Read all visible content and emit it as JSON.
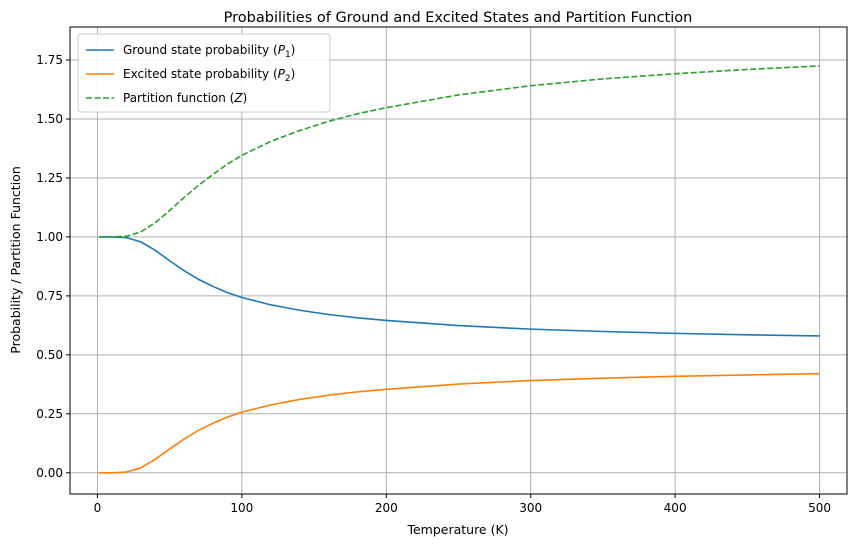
{
  "chart_data": {
    "type": "line",
    "title": "Probabilities of Ground and Excited States and Partition Function",
    "xlabel": "Temperature (K)",
    "ylabel": "Probability / Partition Function",
    "xlim": [
      -19,
      519
    ],
    "ylim": [
      -0.09,
      1.89
    ],
    "xticks": [
      0,
      100,
      200,
      300,
      400,
      500
    ],
    "xtick_labels": [
      "0",
      "100",
      "200",
      "300",
      "400",
      "500"
    ],
    "yticks": [
      0.0,
      0.25,
      0.5,
      0.75,
      1.0,
      1.25,
      1.5,
      1.75
    ],
    "ytick_labels": [
      "0.00",
      "0.25",
      "0.50",
      "0.75",
      "1.00",
      "1.25",
      "1.50",
      "1.75"
    ],
    "grid": true,
    "legend_position": "top-left",
    "x": [
      1,
      10,
      20,
      30,
      40,
      50,
      60,
      70,
      80,
      90,
      100,
      120,
      140,
      160,
      180,
      200,
      250,
      300,
      350,
      400,
      450,
      500
    ],
    "series": [
      {
        "name": "Ground state probability (P1)",
        "name_parts": [
          "Ground state probability (",
          "P",
          "1",
          ")"
        ],
        "color": "#1f77b4",
        "style": "solid",
        "values": [
          1.0,
          1.0,
          0.997,
          0.979,
          0.943,
          0.899,
          0.857,
          0.82,
          0.79,
          0.764,
          0.743,
          0.712,
          0.689,
          0.671,
          0.657,
          0.646,
          0.624,
          0.609,
          0.599,
          0.591,
          0.585,
          0.58
        ]
      },
      {
        "name": "Excited state probability (P2)",
        "name_parts": [
          "Excited state probability (",
          "P",
          "2",
          ")"
        ],
        "color": "#ff7f0e",
        "style": "solid",
        "values": [
          0.0,
          0.0,
          0.003,
          0.021,
          0.057,
          0.101,
          0.143,
          0.18,
          0.21,
          0.236,
          0.257,
          0.288,
          0.311,
          0.329,
          0.343,
          0.354,
          0.376,
          0.391,
          0.401,
          0.409,
          0.415,
          0.42
        ]
      },
      {
        "name": "Partition function (Z)",
        "name_parts": [
          "Partition function (",
          "Z",
          "",
          ")"
        ],
        "color": "#2ca02c",
        "style": "dashed",
        "values": [
          1.0,
          1.0,
          1.003,
          1.021,
          1.06,
          1.112,
          1.167,
          1.219,
          1.265,
          1.309,
          1.346,
          1.405,
          1.451,
          1.49,
          1.522,
          1.548,
          1.602,
          1.641,
          1.67,
          1.692,
          1.71,
          1.725
        ]
      }
    ]
  }
}
